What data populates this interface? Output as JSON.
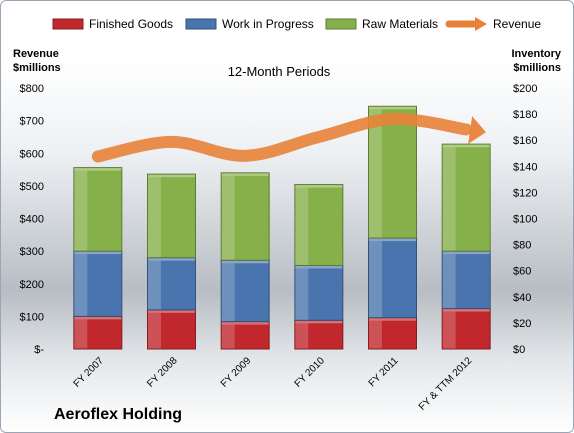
{
  "company": "Aeroflex Holding",
  "chart_data": {
    "type": "bar",
    "stacked": true,
    "subtitle": "12-Month Periods",
    "categories": [
      "FY 2007",
      "FY 2008",
      "FY 2009",
      "FY 2010",
      "FY 2011",
      "FY & TTM 2012"
    ],
    "series": [
      {
        "name": "Finished Goods",
        "axis": "right",
        "color": "#c0282e",
        "values": [
          25,
          30,
          21,
          22,
          24,
          31
        ]
      },
      {
        "name": "Work in Progress",
        "axis": "right",
        "color": "#4a74ad",
        "values": [
          50,
          40,
          47,
          42,
          61,
          44
        ]
      },
      {
        "name": "Raw Materials",
        "axis": "right",
        "color": "#86b04a",
        "values": [
          64,
          64,
          67,
          62,
          101,
          82
        ]
      },
      {
        "name": "Revenue",
        "axis": "left",
        "type": "line",
        "color": "#e8823a",
        "values": [
          590,
          635,
          592,
          650,
          705,
          673
        ]
      }
    ],
    "left_axis": {
      "label": "Revenue $millions",
      "label_lines": [
        "Revenue",
        "$millions"
      ],
      "ylim": [
        0,
        800
      ],
      "tick_labels": [
        "$-",
        "$100",
        "$200",
        "$300",
        "$400",
        "$500",
        "$600",
        "$700",
        "$800"
      ]
    },
    "right_axis": {
      "label": "Inventory $millions",
      "label_lines": [
        "Inventory",
        "$millions"
      ],
      "ylim": [
        0,
        200
      ],
      "tick_labels": [
        "$0",
        "$20",
        "$40",
        "$60",
        "$80",
        "$100",
        "$120",
        "$140",
        "$160",
        "$180",
        "$200"
      ]
    },
    "legend_position": "top",
    "grid": false
  }
}
